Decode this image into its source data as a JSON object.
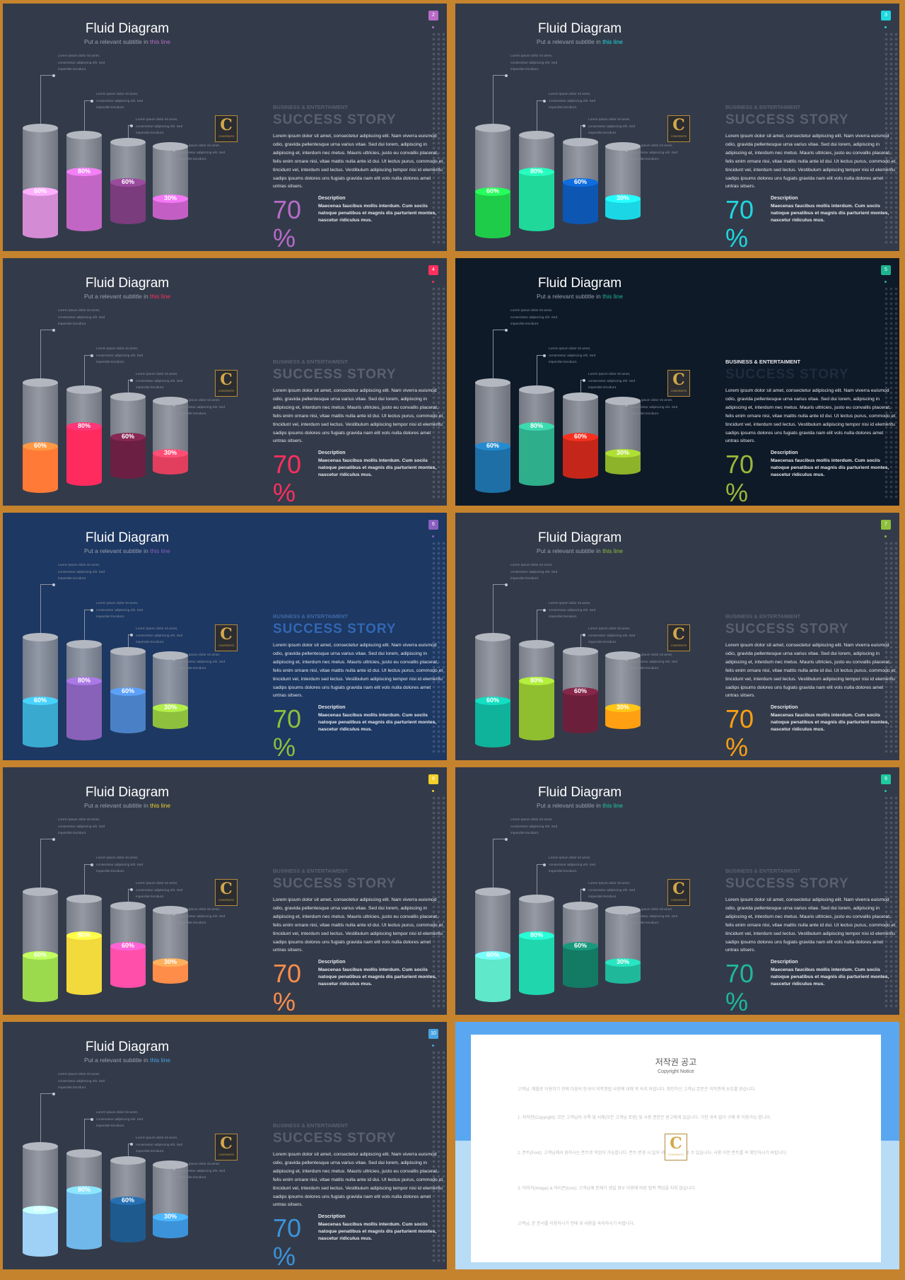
{
  "slides": [
    {
      "page": "2",
      "bg": "#333b4a",
      "accent": "#b86bc8",
      "cyl": [
        "#d38cd3",
        "#c266c5",
        "#7b3c7e",
        "#c35fc4"
      ],
      "pct": [
        "60%",
        "80%",
        "60%",
        "30%"
      ],
      "variant": "normal"
    },
    {
      "page": "3",
      "bg": "#333b4a",
      "accent": "#1fd8e0",
      "cyl": [
        "#1fcc4a",
        "#1fd89a",
        "#0d57b3",
        "#1bd6e4"
      ],
      "pct": [
        "60%",
        "80%",
        "60%",
        "30%"
      ],
      "variant": "normal"
    },
    {
      "page": "4",
      "bg": "#333b4a",
      "accent": "#ff2f5e",
      "cyl": [
        "#ff7a36",
        "#ff2b5f",
        "#6b1f43",
        "#e23f5f"
      ],
      "pct": [
        "60%",
        "80%",
        "60%",
        "30%"
      ],
      "variant": "normal"
    },
    {
      "page": "5",
      "bg": "#0f1a28",
      "accent": "#1eb38f",
      "cyl": [
        "#1d6fa6",
        "#2fae8c",
        "#c5261a",
        "#8cb32a"
      ],
      "pct": [
        "60%",
        "80%",
        "60%",
        "30%"
      ],
      "variant": "dark",
      "big_color": "#9ab83a"
    },
    {
      "page": "6",
      "bg": "#1d3862",
      "accent": "#8a5fbf",
      "cyl": [
        "#3aa9d0",
        "#8861b9",
        "#4a81c6",
        "#8ebf3d"
      ],
      "pct": [
        "60%",
        "80%",
        "60%",
        "30%"
      ],
      "variant": "blue",
      "big_color": "#8ebf3d"
    },
    {
      "page": "7",
      "bg": "#333b4a",
      "accent": "#8ebf3d",
      "cyl": [
        "#0fb29b",
        "#8fbf2f",
        "#6b1f3b",
        "#ff9f12"
      ],
      "pct": [
        "60%",
        "80%",
        "60%",
        "30%"
      ],
      "variant": "normal",
      "big_color": "#ff9f12"
    },
    {
      "page": "8",
      "bg": "#333b4a",
      "accent": "#f2cf2a",
      "cyl": [
        "#9bd94d",
        "#f2d93c",
        "#ff4fab",
        "#ff8d4a"
      ],
      "pct": [
        "60%",
        "80%",
        "60%",
        "30%"
      ],
      "variant": "normal",
      "big_color": "#ff8d4a"
    },
    {
      "page": "9",
      "bg": "#333b4a",
      "accent": "#1fcaa0",
      "cyl": [
        "#5fe8c9",
        "#1fd6ad",
        "#137a64",
        "#1fb89a"
      ],
      "pct": [
        "60%",
        "80%",
        "60%",
        "30%"
      ],
      "variant": "normal",
      "big_color": "#1fb89a"
    },
    {
      "page": "10",
      "bg": "#333b4a",
      "accent": "#4aa3e4",
      "cyl": [
        "#9fd0f5",
        "#71b8ea",
        "#1e5a8e",
        "#3d93d9"
      ],
      "pct": [
        "60%",
        "80%",
        "60%",
        "30%"
      ],
      "variant": "normal",
      "big_color": "#3d93d9"
    }
  ],
  "common": {
    "title": "Fluid Diagram",
    "subtitle_pre": "Put a relevant subtitle in ",
    "subtitle_hl": "this line",
    "note": "Lorem ipsum dolor sit amet, consectetur adipiscing elit. Sed imperdiet tincidunt.",
    "section": "BUSINESS & ENTERTAIMENT",
    "section_dark": "BUSINESS & ENTERTAIMENT",
    "success": "SUCCESS STORY",
    "body": "Lorem ipsum dolor sit amet, consectetur adipiscing elit. Nam viverra euismod odio, gravida pellentesque urna varius vitae. Sed dui lorem, adipiscing in adipiscing et, interdum nec metus. Mauris ultricies, justo eu convallis placerat, felis enim ornare nisi, vitae mattis nulla ante id dui. Ut lectus purus, commodo et tincidunt vel, interdum sed lectus. Vestibulum adipiscing tempor nisi id elementu sadips ipsums dolores uns fugiats gravida nam elit vols nulla dolores amet untras sitsers.",
    "big_number": "70",
    "big_unit": "%",
    "desc_head": "Description",
    "desc_body": "Maecenas faucibus mollis interdum. Cum sociis natoque penatibus et magnis dis parturient montes, nascetur ridiculus mus.",
    "logo_letter": "C",
    "logo_text": "CONTENTS"
  },
  "copyright": {
    "title": "저작권 공고",
    "subtitle": "Copyright Notice",
    "paragraphs": [
      "고객님, 매월로 이용하기 전에 다음의 한국어 저작권법 사항에 대해 꼭 숙지 바랍니다. 확인하신 고객님 본문은 저작권에 보호를 받습니다.",
      "1. 저작권(Copyright): 모든 고객님의 수록 및 서체(모든 고객님 포함) 및 사용 권한은 원고에게 있습니다. 기한 귀속 없이 구매 후 이용가능 합니다.",
      "2. 폰트(Font): 고객님께서 원하시는 폰트로 작업이 가능합니다. 폰트 변경 시 일부 레이아웃이 변할 수 있습니다. 사용 이전 폰트를 꼭 확인하시기 바랍니다.",
      "3. 이미지(Image) & 아이콘(Icon): 고객님께 문제가 생길 경우 이용에 따른 법적 책임을 지지 않습니다.",
      "고객님, 본 문서를 이용하시기 전에 위 내용을 숙지하시기 바랍니다."
    ]
  }
}
